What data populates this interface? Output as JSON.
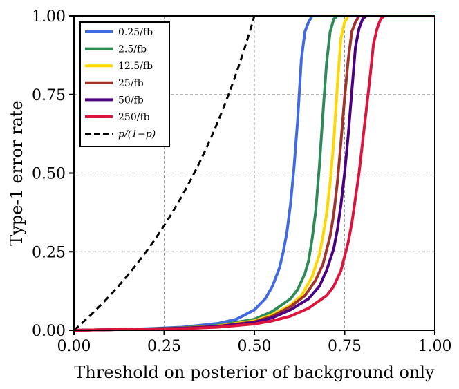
{
  "chart_data": {
    "type": "line",
    "title": "",
    "xlabel": "Threshold on posterior of background only",
    "ylabel": "Type-1 error rate",
    "xlim": [
      0,
      1
    ],
    "ylim": [
      0,
      1
    ],
    "grid": true,
    "legend_position": "top-left",
    "x_ticks": [
      0,
      0.25,
      0.5,
      0.75,
      1
    ],
    "x_tick_labels": [
      "0.00",
      "0.25",
      "0.50",
      "0.75",
      "1.00"
    ],
    "y_ticks": [
      0,
      0.25,
      0.5,
      0.75,
      1
    ],
    "y_tick_labels": [
      "0.00",
      "0.25",
      "0.50",
      "0.75",
      "1.00"
    ],
    "series": [
      {
        "name": "0.25/fb",
        "color": "#4169e1",
        "style": "solid",
        "x": [
          0,
          0.1,
          0.2,
          0.3,
          0.4,
          0.45,
          0.5,
          0.53,
          0.55,
          0.57,
          0.58,
          0.59,
          0.6,
          0.61,
          0.62,
          0.63,
          0.64,
          0.65,
          0.66,
          0.67,
          0.7,
          1.0
        ],
        "y": [
          0,
          0.002,
          0.005,
          0.01,
          0.022,
          0.035,
          0.065,
          0.1,
          0.14,
          0.2,
          0.25,
          0.31,
          0.4,
          0.52,
          0.67,
          0.86,
          0.95,
          0.98,
          1.0,
          1.0,
          1.0,
          1.0
        ]
      },
      {
        "name": "2.5/fb",
        "color": "#2e8b57",
        "style": "solid",
        "x": [
          0,
          0.1,
          0.2,
          0.3,
          0.4,
          0.5,
          0.55,
          0.6,
          0.62,
          0.64,
          0.65,
          0.66,
          0.67,
          0.68,
          0.69,
          0.7,
          0.71,
          0.72,
          0.73,
          0.75,
          1.0
        ],
        "y": [
          0,
          0.002,
          0.004,
          0.008,
          0.016,
          0.035,
          0.06,
          0.1,
          0.13,
          0.18,
          0.22,
          0.29,
          0.38,
          0.52,
          0.69,
          0.85,
          0.95,
          0.99,
          1.0,
          1.0,
          1.0
        ]
      },
      {
        "name": "12.5/fb",
        "color": "#ffd700",
        "style": "solid",
        "x": [
          0,
          0.1,
          0.2,
          0.3,
          0.4,
          0.5,
          0.55,
          0.6,
          0.63,
          0.66,
          0.68,
          0.69,
          0.7,
          0.71,
          0.72,
          0.73,
          0.74,
          0.75,
          0.76,
          0.77,
          1.0
        ],
        "y": [
          0,
          0.002,
          0.004,
          0.007,
          0.014,
          0.03,
          0.05,
          0.08,
          0.11,
          0.17,
          0.24,
          0.3,
          0.37,
          0.47,
          0.6,
          0.78,
          0.93,
          0.98,
          1.0,
          1.0,
          1.0
        ]
      },
      {
        "name": "25/fb",
        "color": "#a0332c",
        "style": "solid",
        "x": [
          0,
          0.1,
          0.2,
          0.3,
          0.4,
          0.5,
          0.55,
          0.6,
          0.64,
          0.67,
          0.69,
          0.71,
          0.72,
          0.73,
          0.74,
          0.75,
          0.76,
          0.77,
          0.78,
          0.79,
          0.8,
          1.0
        ],
        "y": [
          0,
          0.002,
          0.004,
          0.007,
          0.013,
          0.027,
          0.045,
          0.075,
          0.11,
          0.16,
          0.21,
          0.3,
          0.37,
          0.47,
          0.6,
          0.74,
          0.86,
          0.95,
          0.98,
          1.0,
          1.0,
          1.0
        ]
      },
      {
        "name": "50/fb",
        "color": "#4b0082",
        "style": "solid",
        "x": [
          0,
          0.1,
          0.2,
          0.3,
          0.4,
          0.5,
          0.55,
          0.6,
          0.65,
          0.68,
          0.7,
          0.72,
          0.73,
          0.74,
          0.75,
          0.76,
          0.77,
          0.78,
          0.79,
          0.8,
          0.81,
          0.82,
          1.0
        ],
        "y": [
          0,
          0.002,
          0.004,
          0.006,
          0.012,
          0.025,
          0.04,
          0.065,
          0.1,
          0.14,
          0.19,
          0.26,
          0.32,
          0.4,
          0.5,
          0.62,
          0.76,
          0.9,
          0.96,
          0.99,
          1.0,
          1.0,
          1.0
        ]
      },
      {
        "name": "250/fb",
        "color": "#dc143c",
        "style": "solid",
        "x": [
          0,
          0.1,
          0.2,
          0.3,
          0.4,
          0.5,
          0.55,
          0.6,
          0.65,
          0.7,
          0.72,
          0.74,
          0.76,
          0.77,
          0.78,
          0.79,
          0.8,
          0.81,
          0.82,
          0.83,
          0.84,
          0.85,
          0.86,
          0.87,
          0.88,
          1.0
        ],
        "y": [
          0,
          0.002,
          0.003,
          0.005,
          0.01,
          0.02,
          0.03,
          0.045,
          0.07,
          0.11,
          0.14,
          0.19,
          0.28,
          0.34,
          0.42,
          0.5,
          0.6,
          0.7,
          0.8,
          0.91,
          0.96,
          0.99,
          1.0,
          1.0,
          1.0,
          1.0
        ]
      },
      {
        "name": "p/(1−p)",
        "color": "#000000",
        "style": "dashed",
        "function": "p/(1-p)"
      }
    ]
  }
}
